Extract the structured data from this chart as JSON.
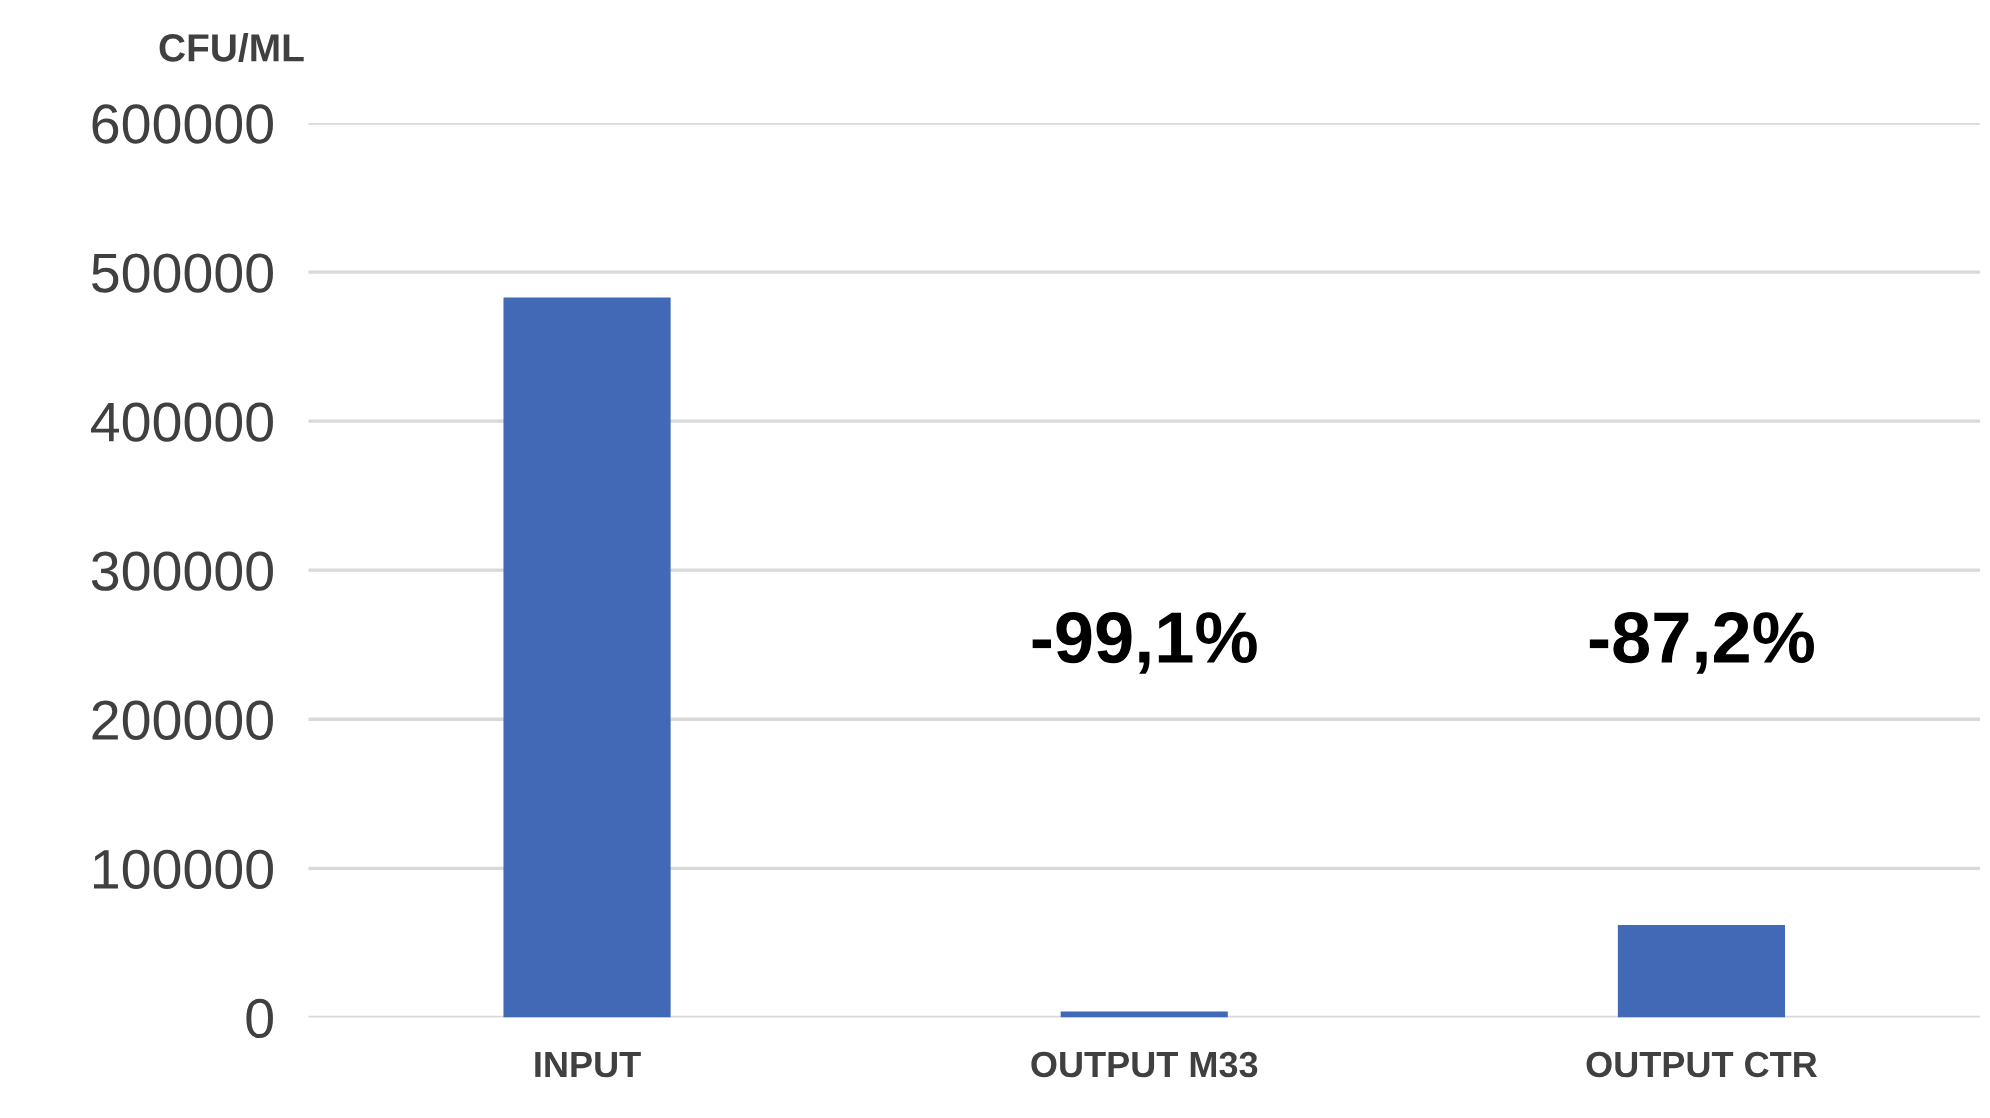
{
  "chart_data": {
    "type": "bar",
    "ylabel": "CFU/ML",
    "categories": [
      "INPUT",
      "OUTPUT M33",
      "OUTPUT CTR"
    ],
    "values": [
      483000,
      4000,
      62000
    ],
    "color": "#4169b6",
    "ylim": [
      0,
      600000
    ],
    "yticks": [
      0,
      100000,
      200000,
      300000,
      400000,
      500000,
      600000
    ],
    "grid": "y",
    "annotations": [
      "-99,1%",
      "-87,2%"
    ]
  }
}
